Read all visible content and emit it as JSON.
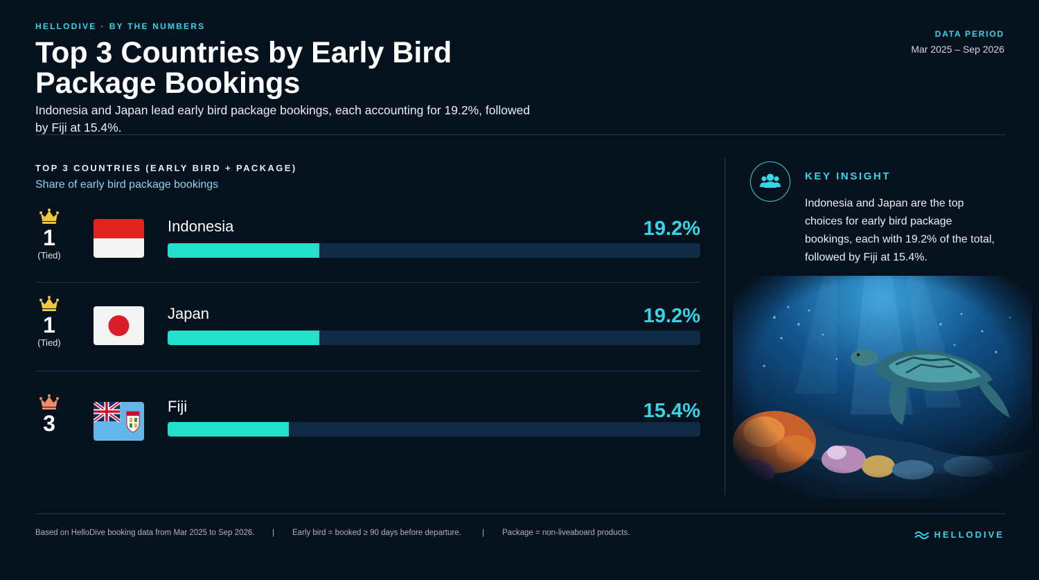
{
  "header": {
    "kicker_brand": "HELLODIVE",
    "kicker_sep": "·",
    "kicker_tag": "BY THE NUMBERS",
    "title": "Top 3 Countries by Early Bird Package Bookings",
    "subtitle": "Indonesia and Japan lead early bird package bookings, each accounting for 19.2%, followed by Fiji at 15.4%."
  },
  "period": {
    "label": "DATA PERIOD",
    "value": "Mar 2025 – Sep 2026"
  },
  "colors": {
    "accent": "#34d6e6",
    "bar_fill": "#22e0c9",
    "bar_track": "#0f2c44",
    "crown_gold": "#f5c542",
    "crown_bronze": "#f08a6b"
  },
  "chart_data": {
    "type": "bar",
    "orientation": "horizontal",
    "title": "TOP 3 COUNTRIES (EARLY BIRD + PACKAGE)",
    "subtitle": "Share of early bird package bookings",
    "categories": [
      "Indonesia",
      "Japan",
      "Fiji"
    ],
    "values": [
      19.2,
      19.2,
      15.4
    ],
    "value_labels": [
      "19.2%",
      "19.2%",
      "15.4%"
    ],
    "xlim": [
      0,
      67.5
    ],
    "ranks": [
      "1",
      "1",
      "3"
    ],
    "rank_notes": [
      "(Tied)",
      "(Tied)",
      ""
    ],
    "flag_icons": [
      "indonesia-flag-icon",
      "japan-flag-icon",
      "fiji-flag-icon"
    ],
    "crown_icons": [
      "crown-gold-icon",
      "crown-gold-icon",
      "crown-bronze-icon"
    ]
  },
  "insight": {
    "label": "KEY INSIGHT",
    "icon": "users-icon",
    "text": "Indonesia and Japan are the top choices for early bird package bookings, each with 19.2% of the total, followed by Fiji at 15.4%."
  },
  "footer": {
    "note1": "Based on HelloDive booking data from Mar 2025 to Sep 2026.",
    "note2": "Early bird = booked ≥ 90 days before departure.",
    "note3": "Package = non-liveaboard products.",
    "separator": "|",
    "brand": "HELLODIVE"
  }
}
